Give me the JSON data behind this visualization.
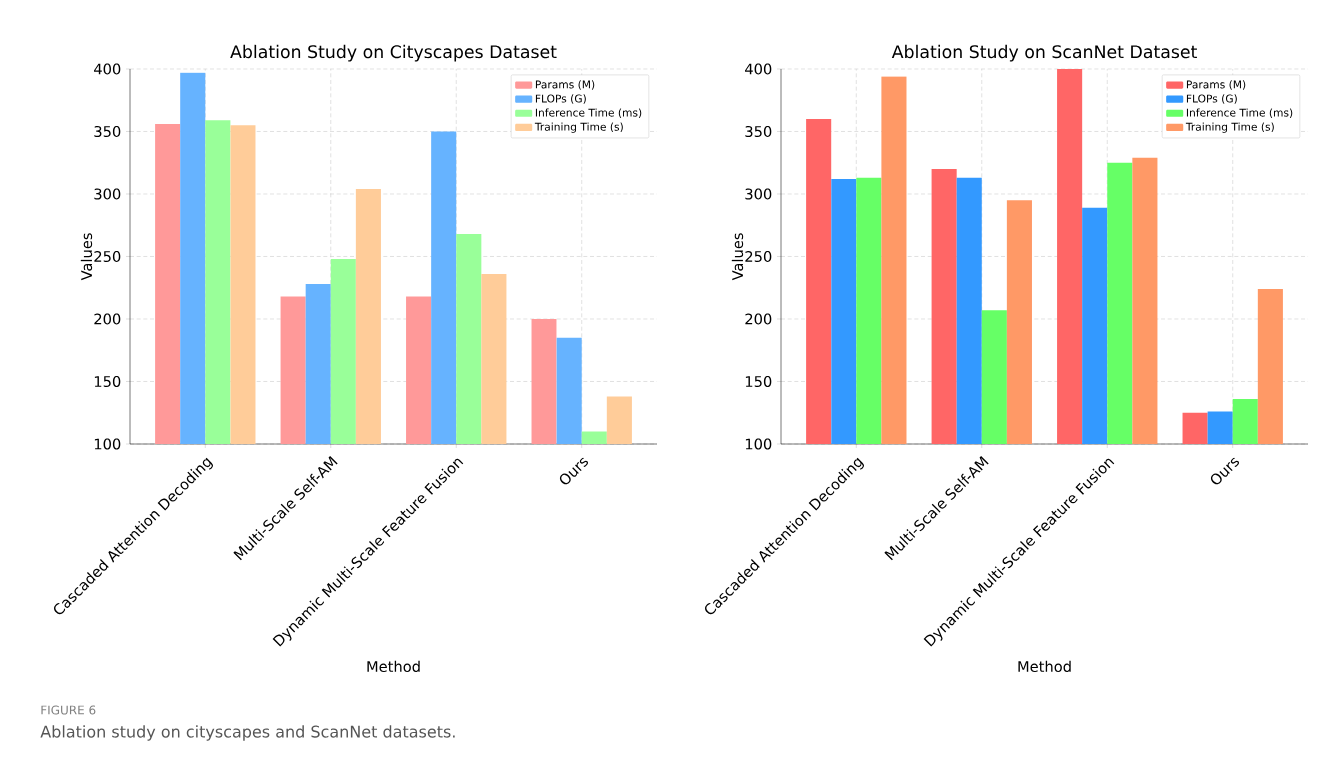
{
  "chart_data": [
    {
      "type": "bar",
      "title": "Ablation Study on Cityscapes Dataset",
      "xlabel": "Method",
      "ylabel": "Values",
      "categories": [
        "Cascaded Attention Decoding",
        "Multi-Scale Self-AM",
        "Dynamic Multi-Scale Feature Fusion",
        "Ours"
      ],
      "series": [
        {
          "name": "Params (M)",
          "color": "#ff9999",
          "values": [
            356,
            218,
            218,
            200
          ]
        },
        {
          "name": "FLOPs (G)",
          "color": "#66b3ff",
          "values": [
            397,
            228,
            350,
            185
          ]
        },
        {
          "name": "Inference Time (ms)",
          "color": "#99ff99",
          "values": [
            359,
            248,
            268,
            110
          ]
        },
        {
          "name": "Training Time (s)",
          "color": "#ffcc99",
          "values": [
            355,
            304,
            236,
            138
          ]
        }
      ],
      "ylim": [
        100,
        400
      ],
      "yticks": [
        100,
        150,
        200,
        250,
        300,
        350,
        400
      ],
      "grid": true,
      "legend": "top right",
      "annotations": [
        "FIGURE 6",
        "Ablation study on cityscapes and ScanNet datasets."
      ]
    },
    {
      "type": "bar",
      "title": "Ablation Study on ScanNet Dataset",
      "xlabel": "Method",
      "ylabel": "Values",
      "categories": [
        "Cascaded Attention Decoding",
        "Multi-Scale Self-AM",
        "Dynamic Multi-Scale Feature Fusion",
        "Ours"
      ],
      "series": [
        {
          "name": "Params (M)",
          "color": "#ff6666",
          "values": [
            360,
            320,
            400,
            125
          ]
        },
        {
          "name": "FLOPs (G)",
          "color": "#3399ff",
          "values": [
            312,
            313,
            289,
            126
          ]
        },
        {
          "name": "Inference Time (ms)",
          "color": "#66ff66",
          "values": [
            313,
            207,
            325,
            136
          ]
        },
        {
          "name": "Training Time (s)",
          "color": "#ff9966",
          "values": [
            394,
            295,
            329,
            224
          ]
        }
      ],
      "ylim": [
        100,
        400
      ],
      "yticks": [
        100,
        150,
        200,
        250,
        300,
        350,
        400
      ],
      "grid": true,
      "legend": "top right"
    }
  ]
}
